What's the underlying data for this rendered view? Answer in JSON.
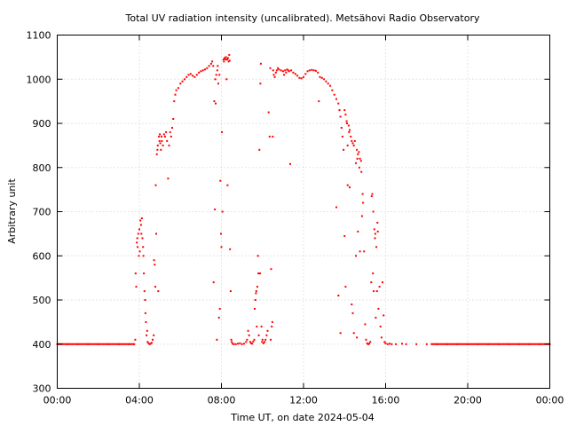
{
  "chart_data": {
    "type": "scatter",
    "title": "Total UV radiation intensity (uncalibrated). Metsähovi Radio Observatory",
    "xlabel": "Time UT, on date 2024-05-04",
    "ylabel": "Arbitrary unit",
    "xlim": [
      0,
      24
    ],
    "ylim": [
      300,
      1100
    ],
    "x_ticks": [
      0,
      4,
      8,
      12,
      16,
      20,
      24
    ],
    "x_tick_labels": [
      "00:00",
      "04:00",
      "08:00",
      "12:00",
      "16:00",
      "20:00",
      "00:00"
    ],
    "y_ticks": [
      300,
      400,
      500,
      600,
      700,
      800,
      900,
      1000,
      1100
    ],
    "y_tick_labels": [
      "300",
      "400",
      "500",
      "600",
      "700",
      "800",
      "900",
      "1000",
      "1100"
    ],
    "grid": true,
    "color": "#ff0000",
    "series": [
      {
        "points": [
          [
            0.0,
            400
          ],
          [
            0.5,
            400
          ],
          [
            1.0,
            400
          ],
          [
            1.5,
            400
          ],
          [
            2.0,
            400
          ],
          [
            2.5,
            400
          ],
          [
            3.0,
            400
          ],
          [
            3.5,
            400
          ],
          [
            3.75,
            400
          ],
          [
            3.8,
            410
          ],
          [
            3.82,
            560
          ],
          [
            3.85,
            530
          ],
          [
            3.88,
            630
          ],
          [
            3.9,
            640
          ],
          [
            3.92,
            620
          ],
          [
            3.95,
            650
          ],
          [
            3.98,
            600
          ],
          [
            4.0,
            660
          ],
          [
            4.02,
            610
          ],
          [
            4.05,
            680
          ],
          [
            4.08,
            670
          ],
          [
            4.1,
            650
          ],
          [
            4.12,
            685
          ],
          [
            4.15,
            640
          ],
          [
            4.18,
            620
          ],
          [
            4.2,
            600
          ],
          [
            4.22,
            560
          ],
          [
            4.25,
            520
          ],
          [
            4.28,
            500
          ],
          [
            4.3,
            470
          ],
          [
            4.32,
            450
          ],
          [
            4.35,
            420
          ],
          [
            4.38,
            430
          ],
          [
            4.4,
            405
          ],
          [
            4.45,
            402
          ],
          [
            4.5,
            400
          ],
          [
            4.55,
            401
          ],
          [
            4.6,
            403
          ],
          [
            4.65,
            410
          ],
          [
            4.7,
            420
          ],
          [
            4.72,
            590
          ],
          [
            4.75,
            580
          ],
          [
            4.78,
            530
          ],
          [
            4.8,
            760
          ],
          [
            4.82,
            650
          ],
          [
            4.85,
            830
          ],
          [
            4.88,
            840
          ],
          [
            4.9,
            850
          ],
          [
            4.92,
            520
          ],
          [
            4.95,
            870
          ],
          [
            4.98,
            860
          ],
          [
            5.0,
            875
          ],
          [
            5.02,
            855
          ],
          [
            5.05,
            840
          ],
          [
            5.08,
            870
          ],
          [
            5.1,
            860
          ],
          [
            5.15,
            850
          ],
          [
            5.2,
            875
          ],
          [
            5.25,
            870
          ],
          [
            5.3,
            880
          ],
          [
            5.35,
            860
          ],
          [
            5.4,
            775
          ],
          [
            5.45,
            850
          ],
          [
            5.5,
            880
          ],
          [
            5.55,
            870
          ],
          [
            5.6,
            890
          ],
          [
            5.65,
            910
          ],
          [
            5.7,
            950
          ],
          [
            5.75,
            965
          ],
          [
            5.8,
            975
          ],
          [
            5.9,
            980
          ],
          [
            6.0,
            990
          ],
          [
            6.1,
            995
          ],
          [
            6.2,
            1000
          ],
          [
            6.3,
            1005
          ],
          [
            6.4,
            1010
          ],
          [
            6.5,
            1012
          ],
          [
            6.6,
            1008
          ],
          [
            6.7,
            1005
          ],
          [
            6.8,
            1010
          ],
          [
            6.9,
            1015
          ],
          [
            7.0,
            1018
          ],
          [
            7.1,
            1020
          ],
          [
            7.2,
            1022
          ],
          [
            7.3,
            1025
          ],
          [
            7.4,
            1030
          ],
          [
            7.5,
            1035
          ],
          [
            7.55,
            1040
          ],
          [
            7.6,
            1030
          ],
          [
            7.62,
            540
          ],
          [
            7.65,
            950
          ],
          [
            7.68,
            705
          ],
          [
            7.7,
            1000
          ],
          [
            7.72,
            945
          ],
          [
            7.75,
            1010
          ],
          [
            7.78,
            410
          ],
          [
            7.8,
            1020
          ],
          [
            7.82,
            1030
          ],
          [
            7.85,
            990
          ],
          [
            7.88,
            460
          ],
          [
            7.9,
            1010
          ],
          [
            7.92,
            480
          ],
          [
            7.95,
            770
          ],
          [
            7.98,
            650
          ],
          [
            8.0,
            620
          ],
          [
            8.02,
            880
          ],
          [
            8.05,
            700
          ],
          [
            8.1,
            1045
          ],
          [
            8.12,
            1040
          ],
          [
            8.15,
            1048
          ],
          [
            8.2,
            1045
          ],
          [
            8.22,
            1050
          ],
          [
            8.25,
            1000
          ],
          [
            8.28,
            1045
          ],
          [
            8.3,
            760
          ],
          [
            8.32,
            1048
          ],
          [
            8.35,
            1040
          ],
          [
            8.38,
            1055
          ],
          [
            8.4,
            1042
          ],
          [
            8.42,
            615
          ],
          [
            8.45,
            520
          ],
          [
            8.48,
            410
          ],
          [
            8.5,
            405
          ],
          [
            8.55,
            401
          ],
          [
            8.6,
            400
          ],
          [
            8.7,
            400
          ],
          [
            8.8,
            401
          ],
          [
            8.9,
            402
          ],
          [
            9.0,
            400
          ],
          [
            9.1,
            401
          ],
          [
            9.2,
            405
          ],
          [
            9.25,
            410
          ],
          [
            9.3,
            430
          ],
          [
            9.35,
            420
          ],
          [
            9.4,
            405
          ],
          [
            9.45,
            402
          ],
          [
            9.5,
            401
          ],
          [
            9.55,
            406
          ],
          [
            9.6,
            410
          ],
          [
            9.62,
            480
          ],
          [
            9.65,
            500
          ],
          [
            9.68,
            515
          ],
          [
            9.7,
            520
          ],
          [
            9.72,
            440
          ],
          [
            9.75,
            530
          ],
          [
            9.78,
            600
          ],
          [
            9.8,
            560
          ],
          [
            9.82,
            420
          ],
          [
            9.85,
            840
          ],
          [
            9.88,
            560
          ],
          [
            9.9,
            990
          ],
          [
            9.92,
            1035
          ],
          [
            9.95,
            440
          ],
          [
            9.98,
            405
          ],
          [
            10.0,
            410
          ],
          [
            10.05,
            402
          ],
          [
            10.1,
            405
          ],
          [
            10.15,
            410
          ],
          [
            10.2,
            420
          ],
          [
            10.25,
            430
          ],
          [
            10.3,
            925
          ],
          [
            10.35,
            870
          ],
          [
            10.38,
            1025
          ],
          [
            10.4,
            410
          ],
          [
            10.42,
            570
          ],
          [
            10.45,
            440
          ],
          [
            10.48,
            450
          ],
          [
            10.5,
            870
          ],
          [
            10.52,
            1020
          ],
          [
            10.55,
            1010
          ],
          [
            10.6,
            1005
          ],
          [
            10.65,
            1015
          ],
          [
            10.7,
            1020
          ],
          [
            10.75,
            1025
          ],
          [
            10.8,
            1022
          ],
          [
            10.9,
            1020
          ],
          [
            11.0,
            1018
          ],
          [
            11.05,
            1010
          ],
          [
            11.1,
            1020
          ],
          [
            11.15,
            1015
          ],
          [
            11.2,
            1022
          ],
          [
            11.25,
            1020
          ],
          [
            11.3,
            1018
          ],
          [
            11.35,
            808
          ],
          [
            11.4,
            1020
          ],
          [
            11.5,
            1015
          ],
          [
            11.6,
            1012
          ],
          [
            11.7,
            1008
          ],
          [
            11.8,
            1003
          ],
          [
            11.9,
            1002
          ],
          [
            12.0,
            1005
          ],
          [
            12.1,
            1012
          ],
          [
            12.2,
            1018
          ],
          [
            12.3,
            1020
          ],
          [
            12.4,
            1021
          ],
          [
            12.5,
            1020
          ],
          [
            12.6,
            1019
          ],
          [
            12.7,
            1015
          ],
          [
            12.75,
            950
          ],
          [
            12.8,
            1005
          ],
          [
            12.9,
            1003
          ],
          [
            13.0,
            1000
          ],
          [
            13.1,
            995
          ],
          [
            13.2,
            990
          ],
          [
            13.3,
            985
          ],
          [
            13.4,
            975
          ],
          [
            13.5,
            965
          ],
          [
            13.6,
            955
          ],
          [
            13.7,
            945
          ],
          [
            13.75,
            930
          ],
          [
            13.8,
            915
          ],
          [
            13.85,
            890
          ],
          [
            13.9,
            870
          ],
          [
            13.95,
            840
          ],
          [
            14.0,
            930
          ],
          [
            14.05,
            920
          ],
          [
            14.1,
            905
          ],
          [
            14.12,
            900
          ],
          [
            14.15,
            850
          ],
          [
            14.2,
            895
          ],
          [
            14.22,
            880
          ],
          [
            14.25,
            885
          ],
          [
            14.3,
            870
          ],
          [
            14.35,
            860
          ],
          [
            14.4,
            855
          ],
          [
            14.45,
            850
          ],
          [
            14.5,
            860
          ],
          [
            14.55,
            810
          ],
          [
            14.6,
            840
          ],
          [
            14.62,
            820
          ],
          [
            14.65,
            830
          ],
          [
            14.7,
            835
          ],
          [
            14.72,
            800
          ],
          [
            14.75,
            820
          ],
          [
            13.75,
            930
          ],
          [
            13.6,
            710
          ],
          [
            13.7,
            510
          ],
          [
            13.8,
            425
          ],
          [
            14.0,
            645
          ],
          [
            14.05,
            530
          ],
          [
            14.15,
            760
          ],
          [
            14.25,
            755
          ],
          [
            14.35,
            490
          ],
          [
            14.4,
            470
          ],
          [
            14.45,
            425
          ],
          [
            14.55,
            600
          ],
          [
            14.6,
            415
          ],
          [
            14.65,
            655
          ],
          [
            14.75,
            610
          ],
          [
            14.8,
            815
          ],
          [
            14.82,
            790
          ],
          [
            14.85,
            690
          ],
          [
            14.88,
            740
          ],
          [
            14.9,
            720
          ],
          [
            14.95,
            610
          ],
          [
            15.0,
            445
          ],
          [
            15.05,
            410
          ],
          [
            15.1,
            402
          ],
          [
            15.15,
            400
          ],
          [
            15.2,
            401
          ],
          [
            15.25,
            405
          ],
          [
            15.3,
            540
          ],
          [
            15.32,
            735
          ],
          [
            15.35,
            740
          ],
          [
            15.38,
            560
          ],
          [
            15.4,
            700
          ],
          [
            15.42,
            520
          ],
          [
            15.45,
            660
          ],
          [
            15.48,
            640
          ],
          [
            15.5,
            650
          ],
          [
            15.52,
            460
          ],
          [
            15.55,
            620
          ],
          [
            15.58,
            520
          ],
          [
            15.6,
            675
          ],
          [
            15.62,
            655
          ],
          [
            15.65,
            480
          ],
          [
            15.7,
            530
          ],
          [
            15.75,
            440
          ],
          [
            15.8,
            415
          ],
          [
            15.85,
            540
          ],
          [
            15.9,
            465
          ],
          [
            15.95,
            405
          ],
          [
            16.0,
            402
          ],
          [
            16.1,
            400
          ],
          [
            16.2,
            401
          ],
          [
            16.3,
            400
          ],
          [
            16.5,
            400
          ],
          [
            16.8,
            401
          ],
          [
            17.0,
            400
          ],
          [
            17.5,
            400
          ],
          [
            18.0,
            400
          ],
          [
            18.5,
            400
          ],
          [
            19.0,
            400
          ],
          [
            19.5,
            400
          ],
          [
            20.0,
            400
          ],
          [
            20.5,
            400
          ],
          [
            21.0,
            400
          ],
          [
            21.5,
            400
          ],
          [
            22.0,
            400
          ],
          [
            22.5,
            400
          ],
          [
            23.0,
            400
          ],
          [
            23.5,
            400
          ],
          [
            24.0,
            400
          ]
        ]
      }
    ]
  }
}
